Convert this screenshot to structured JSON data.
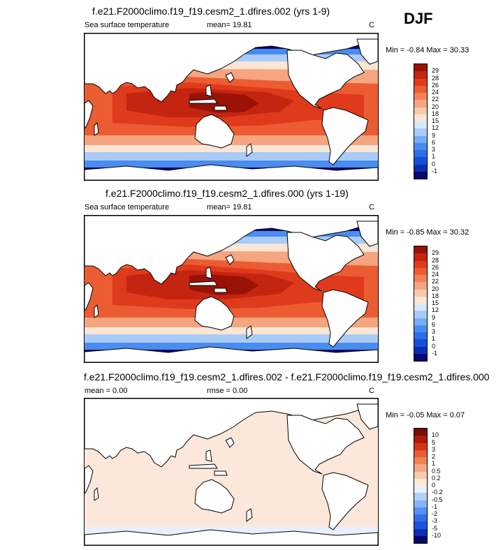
{
  "season_label": "DJF",
  "colors": {
    "abs_palette": [
      "#08086e",
      "#0a2fb0",
      "#1550d8",
      "#2b6ee8",
      "#4a8cf0",
      "#75aef4",
      "#a8cbf8",
      "#d8e8fc",
      "#fbe6d6",
      "#f8c9ab",
      "#f5a57f",
      "#f28158",
      "#ec5c33",
      "#e03a1c",
      "#c42510",
      "#9a1206"
    ],
    "diff_palette": [
      "#07076a",
      "#0c2eb5",
      "#1b52e0",
      "#3070ea",
      "#5590f2",
      "#86b4f6",
      "#b4d0fa",
      "#e6f0fe",
      "#fce8da",
      "#f9cba9",
      "#f5a780",
      "#f08257",
      "#e85b33",
      "#d53418",
      "#ad1a0a",
      "#7a0a04"
    ],
    "land": "#ffffff",
    "outline": "#000000"
  },
  "panels": [
    {
      "title": "f.e21.F2000climo.f19_f19.cesm2_1.dfires.002 (yrs 1-9)",
      "left_label": "Sea surface temperature",
      "mean_label": "mean=  19.81",
      "units": "C",
      "minmax": "Min =  -0.84 Max =  30.33",
      "colorbar_labels": [
        "29",
        "28",
        "26",
        "24",
        "22",
        "20",
        "18",
        "15",
        "12",
        "9",
        "6",
        "3",
        "1",
        "0",
        "-1"
      ],
      "style": "abs"
    },
    {
      "title": "f.e21.F2000climo.f19_f19.cesm2_1.dfires.000 (yrs 1-19)",
      "left_label": "Sea surface temperature",
      "mean_label": "mean=  19.81",
      "units": "C",
      "minmax": "Min =  -0.85 Max =  30.32",
      "colorbar_labels": [
        "29",
        "28",
        "26",
        "24",
        "22",
        "20",
        "18",
        "15",
        "12",
        "9",
        "6",
        "3",
        "1",
        "0",
        "-1"
      ],
      "style": "abs"
    },
    {
      "title": "f.e21.F2000climo.f19_f19.cesm2_1.dfires.002 - f.e21.F2000climo.f19_f19.cesm2_1.dfires.000",
      "left_label": "mean =   0.00",
      "mean_label": "rmse =   0.00",
      "units": "C",
      "minmax": "Min =  -0.05 Max =   0.07",
      "colorbar_labels": [
        "10",
        "5",
        "3",
        "2",
        "1",
        "0.5",
        "0.2",
        "0",
        "-0.2",
        "-0.5",
        "-1",
        "-2",
        "-3",
        "-5",
        "-10"
      ],
      "style": "diff"
    }
  ]
}
